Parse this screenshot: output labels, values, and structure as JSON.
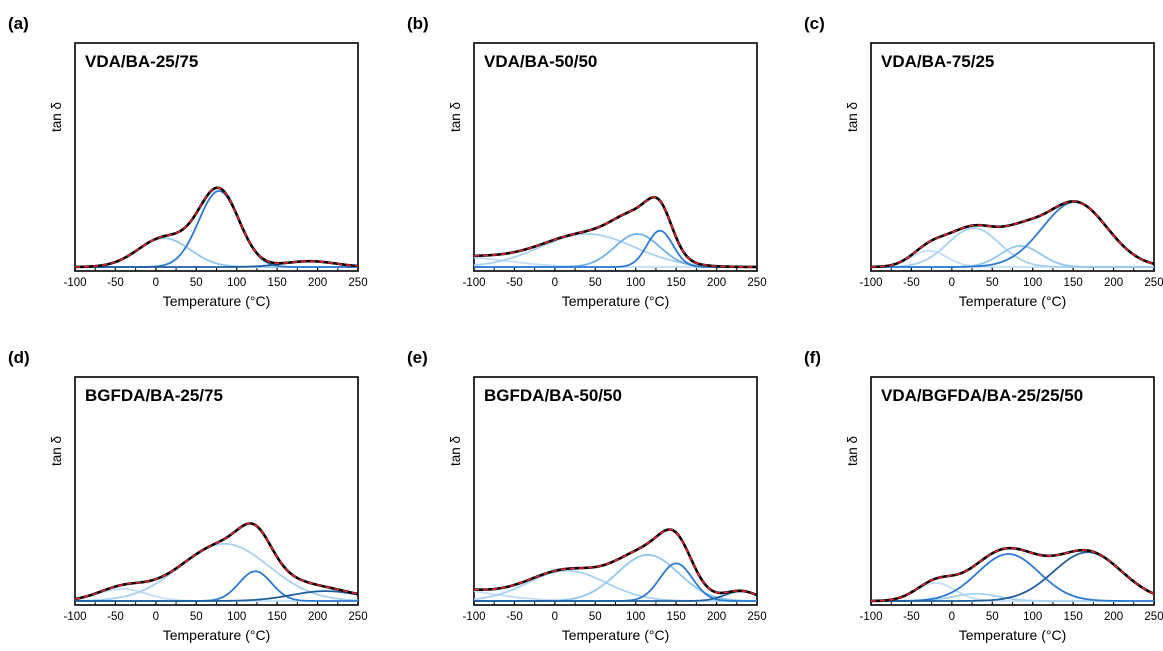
{
  "chart_data": [
    {
      "panel": "(a)",
      "title": "VDA/BA-25/75",
      "type": "line",
      "xlabel": "Temperature (°C)",
      "ylabel": "tan δ",
      "xlim": [
        -100,
        250
      ],
      "ylim": [
        0,
        1
      ],
      "xticks": [
        "-100",
        "-50",
        "0",
        "50",
        "100",
        "150",
        "200",
        "250"
      ],
      "grid": false,
      "series": [
        {
          "color": "#92c7f1",
          "center": 10,
          "width": 32,
          "height": 0.35
        },
        {
          "color": "#2b7ad4",
          "center": 78,
          "width": 25,
          "height": 0.92
        },
        {
          "color": "#1f5f9e",
          "center": 190,
          "width": 32,
          "height": 0.07
        }
      ],
      "fit_color": "#e8232f",
      "envelope_color": "#000000"
    },
    {
      "panel": "(b)",
      "title": "VDA/BA-50/50",
      "type": "line",
      "xlabel": "Temperature (°C)",
      "ylabel": "tan δ",
      "xlim": [
        -100,
        250
      ],
      "ylim": [
        0,
        1
      ],
      "xticks": [
        "-100",
        "-50",
        "0",
        "50",
        "100",
        "150",
        "200",
        "250"
      ],
      "grid": false,
      "series": [
        {
          "color": "#c2defa",
          "center": -120,
          "width": 60,
          "height": 0.09
        },
        {
          "color": "#a7d1f3",
          "center": 40,
          "width": 58,
          "height": 0.3
        },
        {
          "color": "#6fb0ec",
          "center": 102,
          "width": 28,
          "height": 0.3
        },
        {
          "color": "#2b7ad4",
          "center": 130,
          "width": 16,
          "height": 0.33
        }
      ],
      "fit_color": "#e8232f",
      "envelope_color": "#000000"
    },
    {
      "panel": "(c)",
      "title": "VDA/BA-75/25",
      "type": "line",
      "xlabel": "Temperature (°C)",
      "ylabel": "tan δ",
      "xlim": [
        -100,
        250
      ],
      "ylim": [
        0,
        1
      ],
      "xticks": [
        "-100",
        "-50",
        "0",
        "50",
        "100",
        "150",
        "200",
        "250"
      ],
      "grid": false,
      "series": [
        {
          "color": "#c2defa",
          "center": -28,
          "width": 22,
          "height": 0.1
        },
        {
          "color": "#a7d1f3",
          "center": 27,
          "width": 32,
          "height": 0.24
        },
        {
          "color": "#92c7f1",
          "center": 85,
          "width": 25,
          "height": 0.13
        },
        {
          "color": "#2b7ad4",
          "center": 152,
          "width": 40,
          "height": 0.4
        }
      ],
      "fit_color": "#e8232f",
      "envelope_color": "#000000"
    },
    {
      "panel": "(d)",
      "title": "BGFDA/BA-25/75",
      "type": "line",
      "xlabel": "Temperature (°C)",
      "ylabel": "tan δ",
      "xlim": [
        -100,
        250
      ],
      "ylim": [
        0,
        1
      ],
      "xticks": [
        "-100",
        "-50",
        "0",
        "50",
        "100",
        "150",
        "200",
        "250"
      ],
      "grid": false,
      "series": [
        {
          "color": "#c2defa",
          "center": -42,
          "width": 30,
          "height": 0.11
        },
        {
          "color": "#a7d1f3",
          "center": 85,
          "width": 55,
          "height": 0.52
        },
        {
          "color": "#2b7ad4",
          "center": 123,
          "width": 20,
          "height": 0.27
        },
        {
          "color": "#1f5f9e",
          "center": 210,
          "width": 42,
          "height": 0.09
        }
      ],
      "fit_color": "#e8232f",
      "envelope_color": "#000000"
    },
    {
      "panel": "(e)",
      "title": "BGFDA/BA-50/50",
      "type": "line",
      "xlabel": "Temperature (°C)",
      "ylabel": "tan δ",
      "xlim": [
        -100,
        250
      ],
      "ylim": [
        0,
        1
      ],
      "xticks": [
        "-100",
        "-50",
        "0",
        "50",
        "100",
        "150",
        "200",
        "250"
      ],
      "grid": false,
      "series": [
        {
          "color": "#c2defa",
          "center": -140,
          "width": 60,
          "height": 0.1
        },
        {
          "color": "#a7d1f3",
          "center": 15,
          "width": 48,
          "height": 0.25
        },
        {
          "color": "#92c7f1",
          "center": 115,
          "width": 38,
          "height": 0.38
        },
        {
          "color": "#2b7ad4",
          "center": 150,
          "width": 20,
          "height": 0.31
        },
        {
          "color": "#1f5f9e",
          "center": 230,
          "width": 20,
          "height": 0.08
        }
      ],
      "fit_color": "#e8232f",
      "envelope_color": "#000000"
    },
    {
      "panel": "(f)",
      "title": "VDA/BGFDA/BA-25/25/50",
      "type": "line",
      "xlabel": "Temperature (°C)",
      "ylabel": "tan δ",
      "xlim": [
        -100,
        250
      ],
      "ylim": [
        0,
        1
      ],
      "xticks": [
        "-100",
        "-50",
        "0",
        "50",
        "100",
        "150",
        "200",
        "250"
      ],
      "grid": false,
      "series": [
        {
          "color": "#c2defa",
          "center": -20,
          "width": 24,
          "height": 0.1
        },
        {
          "color": "#a7d1f3",
          "center": 30,
          "width": 28,
          "height": 0.04
        },
        {
          "color": "#2b7ad4",
          "center": 70,
          "width": 38,
          "height": 0.26
        },
        {
          "color": "#1f5f9e",
          "center": 168,
          "width": 42,
          "height": 0.27
        }
      ],
      "fit_color": "#e8232f",
      "envelope_color": "#000000"
    }
  ]
}
